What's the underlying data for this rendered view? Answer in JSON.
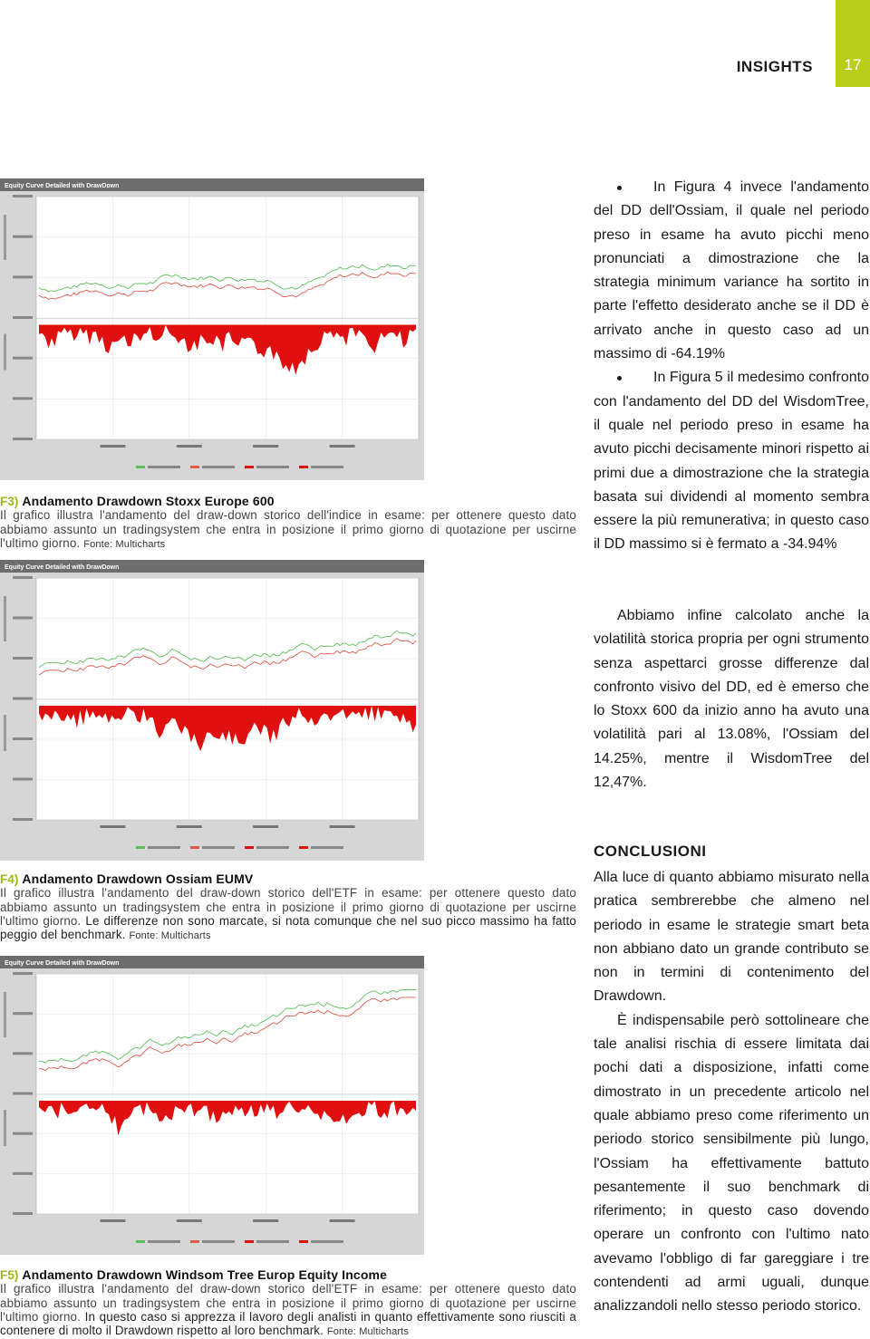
{
  "header": {
    "section": "INSIGHTS",
    "page": "17"
  },
  "figures": [
    {
      "chart_title": "Equity Curve Detailed with DrawDown",
      "label": "F3)",
      "title": "Andamento Drawdown Stoxx Europe 600",
      "caption": "Il grafico illustra l'andamento del draw-down storico dell'indice in esame: per ottenere questo dato abbiamo assunto un tradingsystem che entra in posizione il primo giorno di quotazione per uscirne l'ultimo giorno.",
      "source": "Fonte: Multicharts"
    },
    {
      "chart_title": "Equity Curve Detailed with DrawDown",
      "label": "F4)",
      "title": "Andamento Drawdown Ossiam EUMV",
      "caption": "Il grafico illustra l'andamento del draw-down storico dell'ETF in esame: per ottenere questo dato abbiamo assunto un tradingsystem che entra in posizione il primo giorno di quotazione per uscirne l'ultimo giorno.",
      "note": "Le differenze non sono marcate, si nota comunque che nel suo picco massimo ha fatto peggio del benchmark.",
      "source": "Fonte: Multicharts"
    },
    {
      "chart_title": "Equity Curve Detailed with DrawDown",
      "label": "F5)",
      "title": "Andamento Drawdown Windsom Tree Europ Equity Income",
      "caption": "Il grafico illustra l'andamento del draw-down storico dell'ETF in esame: per ottenere questo dato abbiamo assunto un tradingsystem che entra in posizione il primo giorno di quotazione per uscirne l'ultimo giorno.",
      "note": "In questo caso si apprezza il lavoro degli analisti in quanto effettivamente sono riusciti a contenere di molto il Drawdown rispetto al loro benchmark.",
      "source": "Fonte: Multicharts"
    }
  ],
  "body": {
    "bullets": [
      "In Figura 4 invece l'andamento del DD dell'Ossiam, il quale nel periodo preso in esame ha avuto picchi meno pronunciati a dimostrazione che la strategia minimum variance ha sortito in parte l'effetto desiderato anche se il DD è arrivato anche in questo caso ad un massimo di -64.19%",
      "In Figura 5 il medesimo confronto con l'andamento del DD del WisdomTree, il quale nel periodo preso in esame ha avuto picchi decisamente minori rispetto ai primi due a dimostrazione che la strategia basata sui dividendi al momento sembra essere la più remunerativa; in questo caso il DD massimo si è fermato a -34.94%"
    ],
    "paragraph": "Abbiamo infine calcolato anche la volatilità storica propria per ogni strumento senza aspettarci grosse differenze dal confronto visivo del DD, ed è emerso che lo Stoxx 600 da inizio anno ha avuto una volatilità pari al 13.08%, l'Ossiam del 14.25%, mentre il WisdomTree del 12,47%.",
    "conclusion_heading": "CONCLUSIONI",
    "conclusion_paragraphs": [
      "Alla luce di quanto abbiamo misurato nella pratica sembrerebbe che almeno nel periodo in esame le strategie smart beta non abbiano dato un grande contributo se non in termini di contenimento del Drawdown.",
      "È indispensabile però sottolineare che tale analisi rischia di essere limitata dai pochi dati a disposizione, infatti come dimostrato in un precedente articolo nel quale abbiamo preso come riferimento un periodo storico sensibilmente più lungo, l'Ossiam ha effettivamente battuto pesantemente il suo benchmark di riferimento; in questo caso dovendo operare un confronto con l'ultimo nato avevamo l'obbligo di far gareggiare i tre contendenti ad armi uguali, dunque analizzandoli nello stesso periodo storico."
    ]
  }
}
